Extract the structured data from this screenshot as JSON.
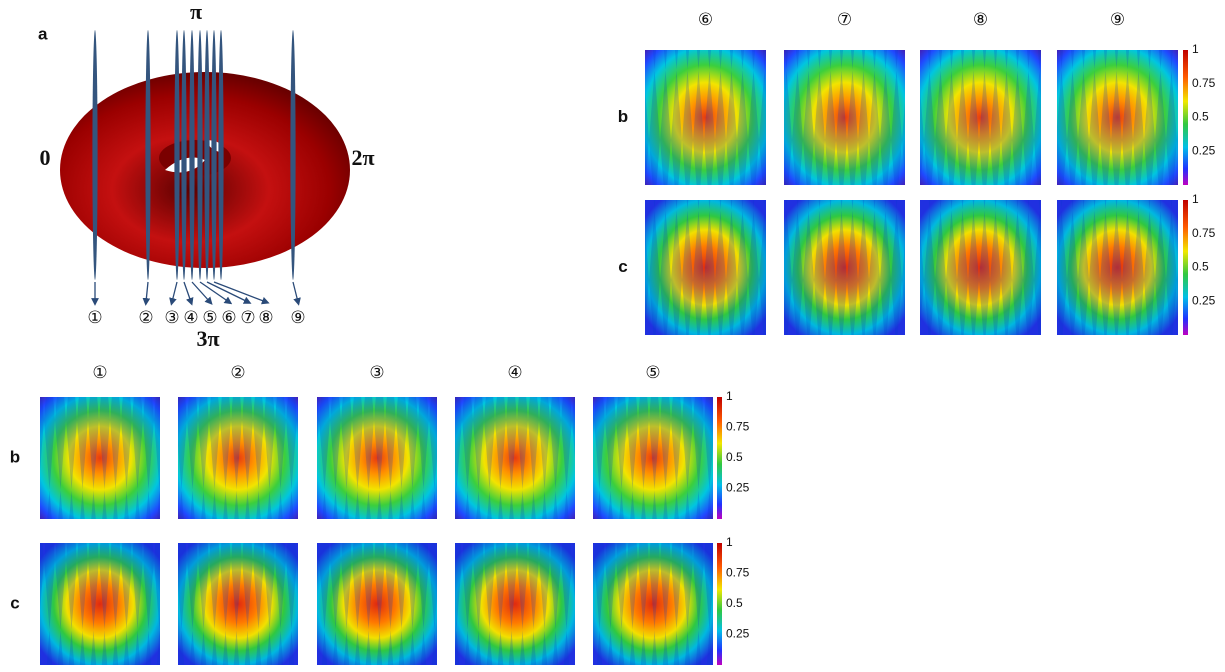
{
  "label_a": "a",
  "torus_labels": {
    "top": "π",
    "left": "0",
    "right": "2π",
    "bottom": "3π"
  },
  "slice_labels": [
    "①",
    "②",
    "③",
    "④",
    "⑤",
    "⑥",
    "⑦",
    "⑧",
    "⑨"
  ],
  "top_panel": {
    "headers": [
      "⑥",
      "⑦",
      "⑧",
      "⑨"
    ],
    "row_labels": [
      "b",
      "c"
    ],
    "colorbar_ticks": [
      "1",
      "0.75",
      "0.5",
      "0.25"
    ]
  },
  "bottom_panel": {
    "headers": [
      "①",
      "②",
      "③",
      "④",
      "⑤"
    ],
    "row_labels": [
      "b",
      "c"
    ],
    "colorbar_ticks": [
      "1",
      "0.75",
      "0.5",
      "0.25"
    ]
  }
}
